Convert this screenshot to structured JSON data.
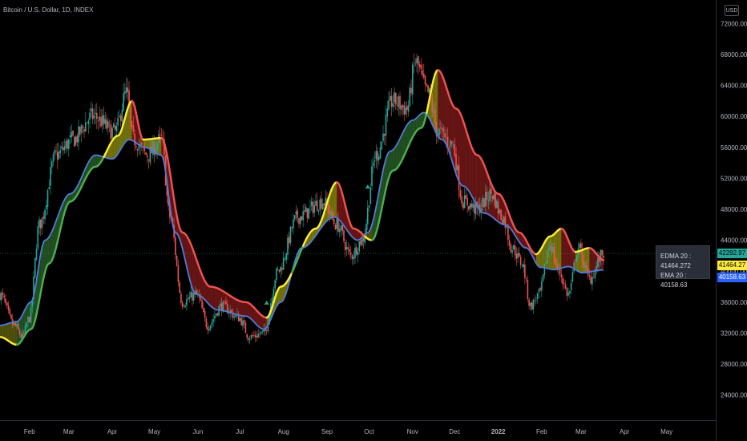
{
  "header": {
    "title": "Bitcoin / U.S. Dollar, 1D, INDEX",
    "currency": "USD"
  },
  "tooltip": {
    "edma": "EDMA 20 : 41464.272",
    "ema": "EMA 20 : 40158.63"
  },
  "price_labels": {
    "last": {
      "text": "42292.97",
      "value": 42292.97,
      "color": "#26a69a"
    },
    "edma": {
      "text": "41464.27",
      "value": 41464.27,
      "color": "#ffeb3b"
    },
    "ema": {
      "text": "40158.63",
      "value": 40158.63,
      "color": "#2962ff"
    }
  },
  "colors": {
    "bull": "#26a69a",
    "bear": "#ef5350",
    "ema": "#4f7cd9",
    "edma_up": "#ffeb3b",
    "edma_down": "#ef5350",
    "edma_green": "#4caf50"
  },
  "chart_data": {
    "type": "line",
    "ylim": [
      22000,
      74000
    ],
    "yticks": [
      "72000.00",
      "68000.00",
      "64000.00",
      "60000.00",
      "56000.00",
      "52000.00",
      "48000.00",
      "44000.00",
      "40000.00",
      "36000.00",
      "32000.00",
      "28000.00",
      "24000.00"
    ],
    "xticks": [
      {
        "label": "Feb",
        "t": 21
      },
      {
        "label": "Mar",
        "t": 49
      },
      {
        "label": "Apr",
        "t": 80
      },
      {
        "label": "May",
        "t": 110
      },
      {
        "label": "Jun",
        "t": 141
      },
      {
        "label": "Jul",
        "t": 171
      },
      {
        "label": "Aug",
        "t": 202
      },
      {
        "label": "Sep",
        "t": 233
      },
      {
        "label": "Oct",
        "t": 263
      },
      {
        "label": "Nov",
        "t": 294
      },
      {
        "label": "Dec",
        "t": 324
      },
      {
        "label": "2022",
        "t": 355
      },
      {
        "label": "Feb",
        "t": 386
      },
      {
        "label": "Mar",
        "t": 414
      },
      {
        "label": "Apr",
        "t": 445
      },
      {
        "label": "May",
        "t": 475
      }
    ],
    "tmax": 510,
    "price_anchors": [
      [
        0,
        37000
      ],
      [
        10,
        33000
      ],
      [
        16,
        31500
      ],
      [
        21,
        34000
      ],
      [
        28,
        46000
      ],
      [
        40,
        55000
      ],
      [
        52,
        57000
      ],
      [
        66,
        60000
      ],
      [
        82,
        58000
      ],
      [
        90,
        63000
      ],
      [
        95,
        57000
      ],
      [
        105,
        55000
      ],
      [
        115,
        57000
      ],
      [
        121,
        47000
      ],
      [
        130,
        36000
      ],
      [
        140,
        37000
      ],
      [
        148,
        33000
      ],
      [
        158,
        35500
      ],
      [
        170,
        34000
      ],
      [
        178,
        31500
      ],
      [
        188,
        32000
      ],
      [
        198,
        40000
      ],
      [
        212,
        47000
      ],
      [
        230,
        49000
      ],
      [
        240,
        46000
      ],
      [
        250,
        42000
      ],
      [
        258,
        44000
      ],
      [
        268,
        55000
      ],
      [
        280,
        62000
      ],
      [
        290,
        61000
      ],
      [
        296,
        67000
      ],
      [
        305,
        63000
      ],
      [
        312,
        58000
      ],
      [
        322,
        56500
      ],
      [
        330,
        49000
      ],
      [
        340,
        48000
      ],
      [
        350,
        50000
      ],
      [
        358,
        47000
      ],
      [
        365,
        43000
      ],
      [
        372,
        41000
      ],
      [
        378,
        35500
      ],
      [
        384,
        37000
      ],
      [
        392,
        43500
      ],
      [
        398,
        40000
      ],
      [
        405,
        37000
      ],
      [
        412,
        43000
      ],
      [
        420,
        39000
      ],
      [
        430,
        42300
      ]
    ],
    "ema_anchors": [
      [
        0,
        33000
      ],
      [
        12,
        33500
      ],
      [
        22,
        36000
      ],
      [
        32,
        44000
      ],
      [
        50,
        50000
      ],
      [
        68,
        55000
      ],
      [
        80,
        54500
      ],
      [
        92,
        57000
      ],
      [
        103,
        56000
      ],
      [
        115,
        55000
      ],
      [
        125,
        45000
      ],
      [
        140,
        37000
      ],
      [
        155,
        35000
      ],
      [
        175,
        34200
      ],
      [
        188,
        32500
      ],
      [
        200,
        36000
      ],
      [
        215,
        43000
      ],
      [
        238,
        47000
      ],
      [
        255,
        44000
      ],
      [
        262,
        45000
      ],
      [
        278,
        55500
      ],
      [
        294,
        59500
      ],
      [
        302,
        60500
      ],
      [
        315,
        57000
      ],
      [
        330,
        51000
      ],
      [
        345,
        47500
      ],
      [
        360,
        46000
      ],
      [
        375,
        43000
      ],
      [
        385,
        40500
      ],
      [
        395,
        40200
      ],
      [
        405,
        40600
      ],
      [
        415,
        39800
      ],
      [
        430,
        40159
      ]
    ],
    "edma_anchors": [
      [
        0,
        31500
      ],
      [
        12,
        30500
      ],
      [
        22,
        32500
      ],
      [
        35,
        41000
      ],
      [
        50,
        49000
      ],
      [
        68,
        53500
      ],
      [
        84,
        57500
      ],
      [
        94,
        62000
      ],
      [
        102,
        57000
      ],
      [
        115,
        57200
      ],
      [
        130,
        45000
      ],
      [
        150,
        38000
      ],
      [
        175,
        36000
      ],
      [
        190,
        34000
      ],
      [
        200,
        38000
      ],
      [
        225,
        45500
      ],
      [
        240,
        51500
      ],
      [
        252,
        45500
      ],
      [
        265,
        44000
      ],
      [
        280,
        53000
      ],
      [
        300,
        58500
      ],
      [
        312,
        66000
      ],
      [
        325,
        61000
      ],
      [
        340,
        55000
      ],
      [
        355,
        50000
      ],
      [
        370,
        45000
      ],
      [
        382,
        42200
      ],
      [
        392,
        44500
      ],
      [
        400,
        45500
      ],
      [
        410,
        42500
      ],
      [
        420,
        43000
      ],
      [
        430,
        41464
      ]
    ],
    "signals": [
      {
        "t": 190,
        "type": "buy",
        "value": 36200
      },
      {
        "t": 262,
        "type": "buy",
        "value": 51200
      }
    ]
  }
}
